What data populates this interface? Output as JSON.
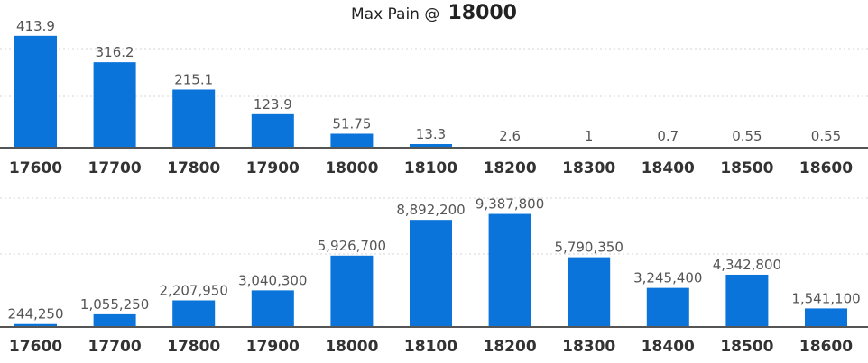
{
  "title": {
    "prefix": "Max Pain @",
    "value": "18000"
  },
  "colors": {
    "bar": "#0a74da",
    "axis": "#555555",
    "grid": "#d6d6d6"
  },
  "chart_data": [
    {
      "type": "bar",
      "categories": [
        "17600",
        "17700",
        "17800",
        "17900",
        "18000",
        "18100",
        "18200",
        "18300",
        "18400",
        "18500",
        "18600"
      ],
      "values": [
        413.9,
        316.2,
        215.1,
        123.9,
        51.75,
        13.3,
        2.6,
        1,
        0.7,
        0.55,
        0.55
      ],
      "data_labels": [
        "413.9",
        "316.2",
        "215.1",
        "123.9",
        "51.75",
        "13.3",
        "2.6",
        "1",
        "0.7",
        "0.55",
        "0.55"
      ],
      "ylim": [
        0,
        500
      ],
      "grid": true
    },
    {
      "type": "bar",
      "categories": [
        "17600",
        "17700",
        "17800",
        "17900",
        "18000",
        "18100",
        "18200",
        "18300",
        "18400",
        "18500",
        "18600"
      ],
      "values": [
        244250,
        1055250,
        2207950,
        3040300,
        5926700,
        8892200,
        9387800,
        5790350,
        3245400,
        4342800,
        1541100
      ],
      "data_labels": [
        "244,250",
        "1,055,250",
        "2,207,950",
        "3,040,300",
        "5,926,700",
        "8,892,200",
        "9,387,800",
        "5,790,350",
        "3,245,400",
        "4,342,800",
        "1,541,100"
      ],
      "ylim": [
        0,
        11000000
      ],
      "grid": true
    }
  ]
}
